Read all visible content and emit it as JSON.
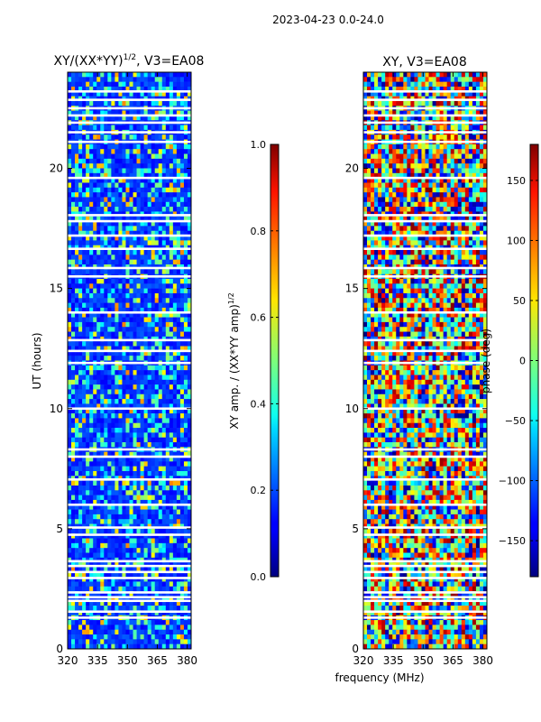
{
  "figure": {
    "suptitle": "2023-04-23 0.0-24.0",
    "xlabel": "frequency (MHz)"
  },
  "chart_data": [
    {
      "type": "heatmap",
      "title": "XY/(XX*YY)^1/2, V3=EA08",
      "title_main": "XY/(XX*YY)",
      "title_sup": "1/2",
      "title_tail": ", V3=EA08",
      "xlabel": "",
      "ylabel": "UT (hours)",
      "x_ticks": [
        "320",
        "335",
        "350",
        "365",
        "380"
      ],
      "y_ticks": [
        "0",
        "5",
        "10",
        "15",
        "20"
      ],
      "xlim": [
        320,
        382
      ],
      "ylim": [
        0,
        24
      ],
      "colormap": "jet",
      "colorbar": {
        "label": "XY amp. / (XX*YY amp)^1/2",
        "label_main": "XY amp. / (XX*YY amp)",
        "label_sup": "1/2",
        "ticks": [
          "0.0",
          "0.2",
          "0.4",
          "0.6",
          "0.8",
          "1.0"
        ],
        "range": [
          0,
          1
        ]
      },
      "dominant_value": 0.12,
      "flagged_hours": [
        1.3,
        1.55,
        2.0,
        2.15,
        2.35,
        2.95,
        3.2,
        3.45,
        3.65,
        4.75,
        5.05,
        6.0,
        7.05,
        8.0,
        8.3,
        10.0,
        11.9,
        12.4,
        12.85,
        14.0,
        15.5,
        15.85,
        16.65,
        17.2,
        17.8,
        18.05,
        19.6,
        21.1,
        21.5,
        21.9,
        22.2,
        22.5,
        22.85,
        23.2
      ]
    },
    {
      "type": "heatmap",
      "title": "XY, V3=EA08",
      "xlabel": "",
      "ylabel": "",
      "x_ticks": [
        "320",
        "335",
        "350",
        "365",
        "380"
      ],
      "y_ticks": [
        "0",
        "5",
        "10",
        "15",
        "20"
      ],
      "xlim": [
        320,
        382
      ],
      "ylim": [
        0,
        24
      ],
      "colormap": "jet",
      "colorbar": {
        "label": "phase (deg)",
        "ticks": [
          "150",
          "100",
          "50",
          "0",
          "−50",
          "−100",
          "−150"
        ],
        "range": [
          -180,
          180
        ]
      },
      "flagged_hours": [
        1.3,
        1.55,
        2.0,
        2.15,
        2.35,
        2.95,
        3.2,
        3.45,
        3.65,
        4.75,
        5.05,
        6.0,
        7.05,
        8.0,
        8.3,
        10.0,
        11.9,
        12.4,
        12.85,
        14.0,
        15.5,
        15.85,
        16.65,
        17.2,
        17.8,
        18.05,
        19.6,
        21.1,
        21.5,
        21.9,
        22.2,
        22.5,
        22.85,
        23.2
      ]
    }
  ]
}
